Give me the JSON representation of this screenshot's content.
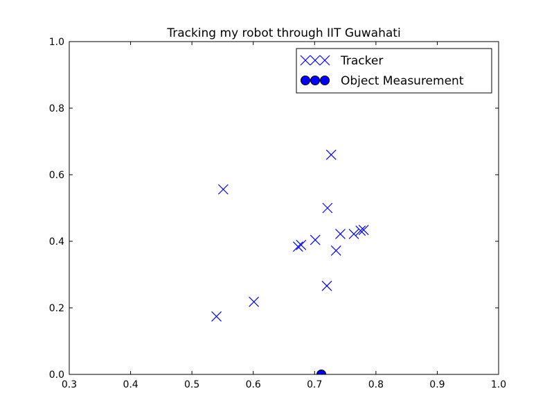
{
  "chart_data": {
    "type": "scatter",
    "title": "Tracking my robot through IIT Guwahati",
    "xlabel": "",
    "ylabel": "",
    "xlim": [
      0.3,
      1.0
    ],
    "ylim": [
      0.0,
      1.0
    ],
    "xticks": [
      "0.3",
      "0.4",
      "0.5",
      "0.6",
      "0.7",
      "0.8",
      "0.9",
      "1.0"
    ],
    "yticks": [
      "0.0",
      "0.2",
      "0.4",
      "0.6",
      "0.8",
      "1.0"
    ],
    "grid": false,
    "legend_position": "top-right",
    "series": [
      {
        "name": "Tracker",
        "marker": "x",
        "color": "#0000ff",
        "points": [
          [
            0.54,
            0.174
          ],
          [
            0.551,
            0.556
          ],
          [
            0.601,
            0.218
          ],
          [
            0.673,
            0.384
          ],
          [
            0.678,
            0.389
          ],
          [
            0.701,
            0.404
          ],
          [
            0.72,
            0.266
          ],
          [
            0.721,
            0.5
          ],
          [
            0.727,
            0.66
          ],
          [
            0.735,
            0.372
          ],
          [
            0.742,
            0.422
          ],
          [
            0.764,
            0.422
          ],
          [
            0.775,
            0.432
          ],
          [
            0.78,
            0.434
          ]
        ]
      },
      {
        "name": "Object Measurement",
        "marker": "o",
        "color": "#0000ff",
        "points": [
          [
            0.711,
            0.0
          ]
        ]
      }
    ]
  }
}
